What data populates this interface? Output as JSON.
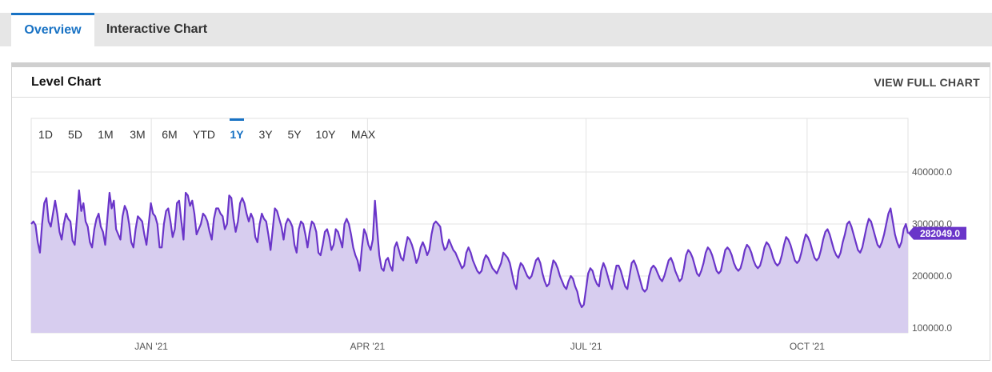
{
  "tabs": [
    {
      "label": "Overview",
      "active": true
    },
    {
      "label": "Interactive Chart",
      "active": false
    }
  ],
  "panel": {
    "title": "Level Chart",
    "view_full_label": "VIEW FULL CHART"
  },
  "range_buttons": [
    "1D",
    "5D",
    "1M",
    "3M",
    "6M",
    "YTD",
    "1Y",
    "3Y",
    "5Y",
    "10Y",
    "MAX"
  ],
  "active_range": "1Y",
  "colors": {
    "accent": "#1872c4",
    "line": "#6a35c9",
    "fill": "#d7cdef",
    "grid": "#e3e3e3"
  },
  "chart_data": {
    "type": "area",
    "title": "",
    "xlabel": "",
    "ylabel": "",
    "ylim": [
      100000,
      400000
    ],
    "y_ticks": [
      "400000.0",
      "300000.0",
      "200000.0",
      "100000.0"
    ],
    "x_ticks": [
      "JAN '21",
      "APR '21",
      "JUL '21",
      "OCT '21"
    ],
    "last_value_label": "282049.0",
    "last_value": 282049,
    "x_start": "2020-11-12",
    "x_end": "2021-11-12",
    "series": [
      {
        "values": [
          300000,
          305000,
          298000,
          265000,
          245000,
          300000,
          340000,
          350000,
          305000,
          295000,
          320000,
          345000,
          320000,
          285000,
          270000,
          300000,
          320000,
          310000,
          305000,
          268000,
          260000,
          310000,
          365000,
          325000,
          340000,
          305000,
          295000,
          265000,
          255000,
          290000,
          310000,
          320000,
          295000,
          285000,
          260000,
          310000,
          360000,
          330000,
          345000,
          290000,
          280000,
          270000,
          315000,
          335000,
          325000,
          300000,
          265000,
          255000,
          290000,
          315000,
          310000,
          305000,
          280000,
          260000,
          300000,
          340000,
          320000,
          315000,
          300000,
          255000,
          255000,
          300000,
          325000,
          330000,
          305000,
          275000,
          290000,
          340000,
          345000,
          305000,
          270000,
          360000,
          355000,
          335000,
          345000,
          320000,
          280000,
          290000,
          300000,
          320000,
          315000,
          305000,
          285000,
          270000,
          310000,
          330000,
          330000,
          320000,
          315000,
          290000,
          300000,
          355000,
          350000,
          310000,
          285000,
          305000,
          340000,
          350000,
          340000,
          320000,
          305000,
          320000,
          310000,
          275000,
          265000,
          300000,
          320000,
          310000,
          305000,
          280000,
          250000,
          290000,
          330000,
          325000,
          310000,
          295000,
          270000,
          300000,
          310000,
          305000,
          295000,
          260000,
          245000,
          290000,
          305000,
          300000,
          280000,
          255000,
          285000,
          305000,
          300000,
          285000,
          245000,
          240000,
          260000,
          285000,
          290000,
          275000,
          250000,
          260000,
          290000,
          285000,
          270000,
          255000,
          300000,
          310000,
          300000,
          280000,
          255000,
          240000,
          230000,
          210000,
          255000,
          290000,
          280000,
          260000,
          250000,
          270000,
          345000,
          290000,
          240000,
          215000,
          210000,
          230000,
          235000,
          220000,
          210000,
          255000,
          265000,
          250000,
          235000,
          230000,
          255000,
          275000,
          270000,
          260000,
          245000,
          225000,
          235000,
          255000,
          265000,
          255000,
          240000,
          250000,
          280000,
          300000,
          305000,
          300000,
          295000,
          265000,
          250000,
          255000,
          270000,
          260000,
          250000,
          245000,
          235000,
          225000,
          215000,
          220000,
          245000,
          255000,
          245000,
          230000,
          220000,
          210000,
          205000,
          210000,
          230000,
          240000,
          235000,
          225000,
          215000,
          210000,
          205000,
          215000,
          225000,
          245000,
          240000,
          235000,
          225000,
          205000,
          185000,
          175000,
          210000,
          225000,
          220000,
          210000,
          200000,
          195000,
          200000,
          215000,
          230000,
          235000,
          225000,
          205000,
          190000,
          180000,
          185000,
          210000,
          230000,
          225000,
          215000,
          200000,
          190000,
          180000,
          175000,
          190000,
          200000,
          195000,
          180000,
          170000,
          150000,
          140000,
          145000,
          175000,
          205000,
          215000,
          210000,
          195000,
          185000,
          180000,
          210000,
          225000,
          215000,
          200000,
          185000,
          175000,
          200000,
          220000,
          220000,
          210000,
          195000,
          180000,
          175000,
          200000,
          225000,
          230000,
          220000,
          205000,
          190000,
          175000,
          170000,
          175000,
          200000,
          215000,
          220000,
          215000,
          205000,
          195000,
          190000,
          200000,
          215000,
          230000,
          235000,
          225000,
          210000,
          200000,
          190000,
          195000,
          215000,
          240000,
          250000,
          245000,
          235000,
          220000,
          205000,
          200000,
          210000,
          225000,
          245000,
          255000,
          250000,
          240000,
          225000,
          210000,
          205000,
          210000,
          230000,
          250000,
          255000,
          250000,
          240000,
          225000,
          215000,
          210000,
          215000,
          230000,
          250000,
          260000,
          255000,
          245000,
          230000,
          220000,
          215000,
          220000,
          235000,
          255000,
          265000,
          260000,
          250000,
          235000,
          225000,
          220000,
          225000,
          240000,
          260000,
          275000,
          270000,
          260000,
          245000,
          230000,
          225000,
          230000,
          245000,
          265000,
          280000,
          275000,
          265000,
          250000,
          235000,
          230000,
          235000,
          250000,
          270000,
          285000,
          290000,
          280000,
          265000,
          250000,
          240000,
          235000,
          245000,
          265000,
          280000,
          300000,
          305000,
          295000,
          280000,
          265000,
          250000,
          245000,
          255000,
          275000,
          295000,
          310000,
          305000,
          290000,
          275000,
          260000,
          255000,
          265000,
          280000,
          300000,
          320000,
          330000,
          305000,
          280000,
          265000,
          255000,
          265000,
          290000,
          300000,
          282049
        ]
      }
    ]
  }
}
